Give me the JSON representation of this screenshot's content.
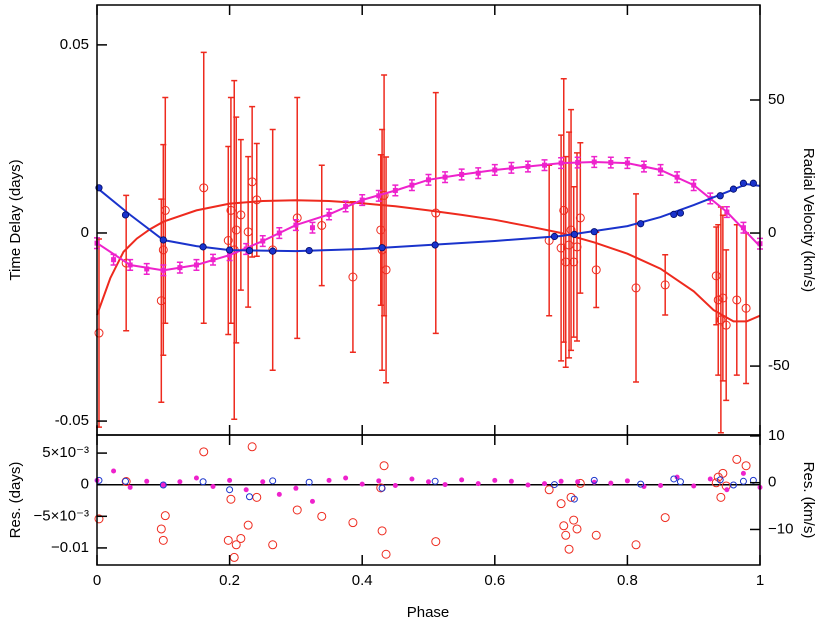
{
  "chart_data": [
    {
      "type": "scatter",
      "ylabel": "Time Delay (days)",
      "y2label": "Radial Velocity (km/s)",
      "xlim": [
        0,
        1
      ],
      "ylim": [
        -0.0537,
        0.0606
      ],
      "yticks": [
        0.05,
        0,
        -0.05
      ],
      "y2lim": [
        -75.9,
        85.7
      ],
      "y2ticks": [
        50,
        0,
        -50
      ],
      "series": [
        {
          "mode": "errorbar",
          "marker": "open-circle",
          "color": "#ee2a1e",
          "x": [
            0.003,
            0.044,
            0.097,
            0.1,
            0.103,
            0.161,
            0.198,
            0.202,
            0.207,
            0.21,
            0.217,
            0.228,
            0.234,
            0.241,
            0.265,
            0.302,
            0.339,
            0.386,
            0.428,
            0.43,
            0.433,
            0.436,
            0.511,
            0.682,
            0.7,
            0.704,
            0.707,
            0.712,
            0.715,
            0.719,
            0.724,
            0.729,
            0.753,
            0.813,
            0.857,
            0.934,
            0.937,
            0.941,
            0.944,
            0.949,
            0.965,
            0.979
          ],
          "values": [
            -0.0266,
            -0.008,
            -0.018,
            -0.0045,
            0.006,
            0.012,
            -0.002,
            0.006,
            -0.0045,
            0.0008,
            0.0048,
            0.0003,
            0.0136,
            0.0088,
            -0.0045,
            0.004,
            0.002,
            -0.0117,
            0.0008,
            -0.0045,
            0.01,
            -0.0098,
            0.0053,
            -0.002,
            -0.004,
            0.006,
            -0.0077,
            -0.0032,
            0.0008,
            -0.0077,
            -0.0037,
            0.004,
            -0.0098,
            -0.0146,
            -0.0138,
            -0.0114,
            -0.0178,
            -0.0231,
            -0.0173,
            -0.0245,
            -0.0178,
            -0.02
          ],
          "errors": [
            0.025,
            0.018,
            0.027,
            0.028,
            0.03,
            0.036,
            0.025,
            0.03,
            0.045,
            0.03,
            0.02,
            0.02,
            0.02,
            0.015,
            0.032,
            0.032,
            0.016,
            0.02,
            0.02,
            0.032,
            0.032,
            0.03,
            0.032,
            0.02,
            0.03,
            0.035,
            0.028,
            0.03,
            0.032,
            0.02,
            0.025,
            0.02,
            0.01,
            0.025,
            0.008,
            0.013,
            0.02,
            0.03,
            0.022,
            0.02,
            0.02,
            0.02
          ]
        },
        {
          "mode": "line",
          "color": "#ee2a1e",
          "x": [
            0,
            0.02,
            0.04,
            0.06,
            0.08,
            0.1,
            0.15,
            0.2,
            0.25,
            0.3,
            0.35,
            0.4,
            0.45,
            0.5,
            0.55,
            0.6,
            0.65,
            0.7,
            0.75,
            0.8,
            0.85,
            0.9,
            0.93,
            0.96,
            0.98,
            1
          ],
          "values": [
            -0.0218,
            -0.012,
            -0.005,
            -0.0015,
            0.001,
            0.003,
            0.006,
            0.0078,
            0.0085,
            0.0087,
            0.0085,
            0.0079,
            0.0071,
            0.006,
            0.0048,
            0.0035,
            0.0018,
            0.0,
            -0.0025,
            -0.0055,
            -0.0095,
            -0.0155,
            -0.0205,
            -0.0235,
            -0.0235,
            -0.022
          ]
        },
        {
          "mode": "line",
          "color": "#ee22cc",
          "axis": "y2",
          "x": [
            0,
            0.05,
            0.1,
            0.15,
            0.2,
            0.25,
            0.3,
            0.35,
            0.4,
            0.45,
            0.5,
            0.55,
            0.6,
            0.65,
            0.7,
            0.75,
            0.8,
            0.85,
            0.9,
            0.95,
            1
          ],
          "values": [
            -3.8,
            -12,
            -14,
            -12,
            -8.3,
            -3,
            3,
            7,
            12.4,
            16,
            20,
            22,
            23.7,
            25,
            26.3,
            26.7,
            26.3,
            23.7,
            18,
            7.9,
            -5
          ]
        },
        {
          "mode": "errorbar",
          "marker": "filled-square",
          "color": "#ee22cc",
          "axis": "y2",
          "x": [
            0,
            0.025,
            0.05,
            0.075,
            0.1,
            0.125,
            0.15,
            0.175,
            0.2,
            0.225,
            0.25,
            0.275,
            0.3,
            0.325,
            0.35,
            0.375,
            0.4,
            0.425,
            0.45,
            0.475,
            0.5,
            0.525,
            0.55,
            0.575,
            0.6,
            0.625,
            0.65,
            0.675,
            0.7,
            0.725,
            0.75,
            0.775,
            0.8,
            0.825,
            0.85,
            0.875,
            0.9,
            0.925,
            0.95,
            0.975,
            1
          ],
          "values": [
            -3.8,
            -10,
            -12,
            -13.5,
            -14,
            -13,
            -12,
            -10,
            -8.3,
            -6,
            -3,
            0,
            3,
            2,
            7,
            10,
            12.4,
            14,
            16,
            18,
            20,
            21,
            22,
            22.5,
            23.7,
            24.5,
            25,
            25.5,
            26.3,
            26.5,
            26.7,
            26.5,
            26.3,
            25,
            23.7,
            21,
            18,
            13,
            7.9,
            2,
            -4
          ],
          "errors": [
            2,
            2,
            2,
            2,
            2,
            2,
            2,
            2,
            2,
            2,
            2,
            2,
            2,
            2,
            2,
            2,
            2,
            2,
            2,
            2,
            2,
            2,
            2,
            2,
            2,
            2,
            2,
            2,
            2,
            2,
            2,
            2,
            2,
            2,
            2,
            2,
            2,
            2,
            2,
            2,
            2
          ]
        },
        {
          "mode": "line",
          "color": "#1a33cc",
          "axis": "y2",
          "x": [
            0,
            0.05,
            0.1,
            0.15,
            0.2,
            0.3,
            0.4,
            0.5,
            0.6,
            0.7,
            0.8,
            0.85,
            0.9,
            0.95,
            0.98,
            1
          ],
          "values": [
            17,
            6.8,
            -2.6,
            -4.9,
            -6.4,
            -6.8,
            -6,
            -4.5,
            -3,
            -1.1,
            2.6,
            6,
            10.5,
            15.4,
            18.4,
            17.7
          ]
        },
        {
          "mode": "points",
          "marker": "filled-circle",
          "color": "#1a33cc",
          "axis": "y2",
          "x": [
            0.003,
            0.043,
            0.1,
            0.16,
            0.2,
            0.23,
            0.265,
            0.32,
            0.43,
            0.51,
            0.69,
            0.72,
            0.75,
            0.82,
            0.87,
            0.88,
            0.94,
            0.96,
            0.975,
            0.99
          ],
          "values": [
            17,
            6.8,
            -2.6,
            -5.2,
            -6.4,
            -6.6,
            -6.8,
            -6.6,
            -5.5,
            -4.5,
            -1.3,
            -0.5,
            0.5,
            3.5,
            7,
            7.5,
            14,
            16.5,
            18.7,
            18.7
          ]
        }
      ]
    },
    {
      "type": "scatter",
      "ylabel": "Res. (days)",
      "y2label": "Res. (km/s)",
      "xlabel": "Phase",
      "xlim": [
        0,
        1
      ],
      "xticks": [
        0,
        0.2,
        0.4,
        0.6,
        0.8,
        1
      ],
      "ylim": [
        -0.0127,
        0.00786
      ],
      "yticks": [
        {
          "value": 0.005,
          "label": "5×10⁻³"
        },
        0,
        {
          "value": -0.005,
          "label": "−5×10⁻³"
        },
        {
          "value": -0.01,
          "label": "−0.01"
        }
      ],
      "y2lim": [
        -17.6,
        10.2
      ],
      "y2ticks": [
        10,
        0,
        {
          "value": -10,
          "label": "−10"
        }
      ],
      "series": [
        {
          "mode": "points",
          "marker": "open-circle",
          "color": "#ee2a1e",
          "x": [
            0.003,
            0.044,
            0.097,
            0.1,
            0.103,
            0.161,
            0.198,
            0.202,
            0.207,
            0.21,
            0.217,
            0.228,
            0.234,
            0.241,
            0.265,
            0.302,
            0.339,
            0.386,
            0.428,
            0.43,
            0.433,
            0.436,
            0.511,
            0.682,
            0.7,
            0.704,
            0.707,
            0.712,
            0.715,
            0.719,
            0.724,
            0.729,
            0.753,
            0.813,
            0.857,
            0.934,
            0.937,
            0.941,
            0.944,
            0.949,
            0.965,
            0.979
          ],
          "values": [
            -0.0054,
            0.0005,
            -0.007,
            -0.0088,
            -0.0049,
            0.0052,
            -0.0088,
            -0.0023,
            -0.0115,
            -0.0095,
            -0.0085,
            -0.0064,
            0.006,
            -0.002,
            -0.0095,
            -0.004,
            -0.005,
            -0.006,
            -0.0005,
            -0.0073,
            0.003,
            -0.011,
            -0.009,
            -0.0008,
            -0.003,
            -0.0065,
            -0.008,
            -0.0102,
            -0.002,
            -0.0056,
            -0.007,
            0.0002,
            -0.008,
            -0.0095,
            -0.0052,
            0.0003,
            0.0012,
            -0.002,
            0.0018,
            -0.0002,
            0.004,
            0.003
          ]
        },
        {
          "mode": "points",
          "marker": "filled-dot",
          "color": "#ee22cc",
          "axis": "y2",
          "x": [
            0,
            0.025,
            0.05,
            0.075,
            0.1,
            0.125,
            0.15,
            0.175,
            0.2,
            0.225,
            0.25,
            0.275,
            0.3,
            0.325,
            0.35,
            0.375,
            0.4,
            0.425,
            0.45,
            0.475,
            0.5,
            0.525,
            0.55,
            0.575,
            0.6,
            0.625,
            0.65,
            0.675,
            0.7,
            0.725,
            0.75,
            0.775,
            0.8,
            0.825,
            0.85,
            0.875,
            0.9,
            0.925,
            0.95,
            0.975,
            1
          ],
          "values": [
            0.5,
            2.5,
            -1,
            0.3,
            -0.5,
            0.2,
            1,
            -0.8,
            0.5,
            -1.5,
            0.2,
            -2.5,
            -1.2,
            -4,
            0.5,
            1,
            -0.3,
            0.4,
            -0.6,
            0.8,
            0.2,
            -0.4,
            0.6,
            -0.2,
            0.5,
            0.3,
            -0.5,
            -0.2,
            0.3,
            0.2,
            0.1,
            -0.1,
            0.4,
            -0.8,
            -0.6,
            1.2,
            -0.7,
            0.8,
            -1.5,
            2,
            -1
          ]
        },
        {
          "mode": "points",
          "marker": "open-circle-small",
          "color": "#1a33cc",
          "axis": "y2",
          "x": [
            0.003,
            0.043,
            0.1,
            0.16,
            0.2,
            0.23,
            0.265,
            0.32,
            0.43,
            0.51,
            0.69,
            0.72,
            0.75,
            0.82,
            0.87,
            0.88,
            0.94,
            0.96,
            0.975,
            0.99
          ],
          "values": [
            0.5,
            0.3,
            -0.5,
            0.2,
            -1.5,
            -3,
            0.4,
            0.1,
            -1.2,
            0.3,
            -0.4,
            -3.5,
            0.5,
            -0.3,
            0.8,
            0.2,
            0.6,
            -0.5,
            0.3,
            0.5
          ]
        }
      ]
    }
  ]
}
